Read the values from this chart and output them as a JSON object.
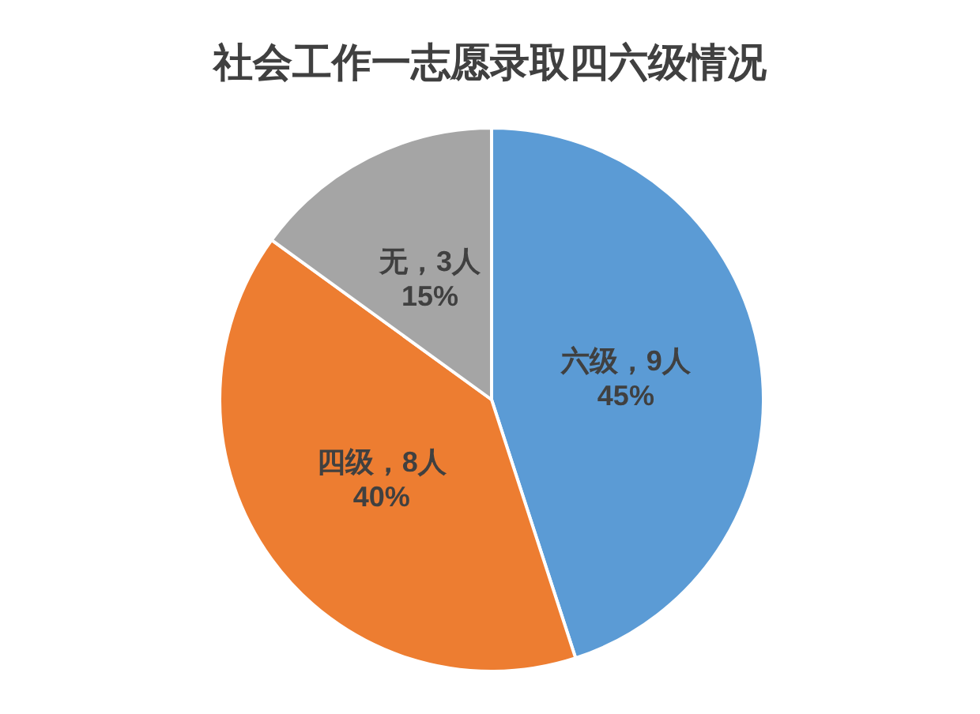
{
  "chart_data": {
    "type": "pie",
    "title": "社会工作一志愿录取四六级情况",
    "categories": [
      "六级，9人",
      "四级，8人",
      "无，3人"
    ],
    "values": [
      45,
      40,
      15
    ],
    "value_labels": [
      "45%",
      "40%",
      "15%"
    ],
    "colors": [
      "#5b9bd5",
      "#ed7d31",
      "#a5a5a5"
    ],
    "legend": false
  }
}
